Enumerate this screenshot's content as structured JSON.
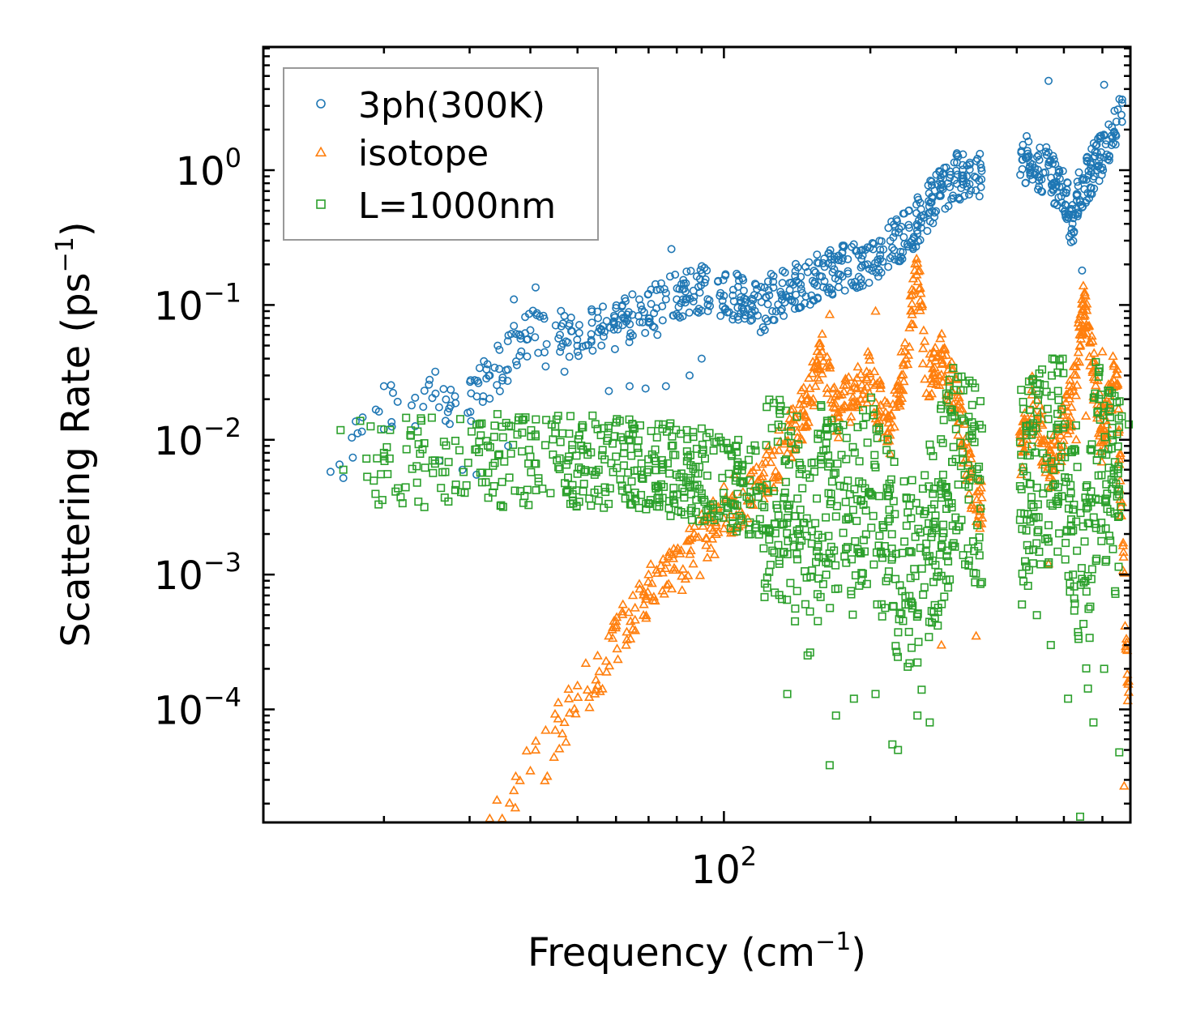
{
  "chart_data": {
    "type": "scatter",
    "title": "",
    "xlabel": "Frequency (cm",
    "xlabel_sup": "−1",
    "xlabel_end": ")",
    "ylabel": "Scattering Rate (ps",
    "ylabel_sup": "−1",
    "ylabel_end": ")",
    "xscale": "log",
    "yscale": "log",
    "xlim": [
      11.3,
      685
    ],
    "ylim": [
      1.45e-05,
      8.2
    ],
    "x_tick_labels": [
      {
        "value": 100,
        "base": "10",
        "exp": "2"
      }
    ],
    "y_tick_labels": [
      {
        "value": 1,
        "base": "10",
        "exp": "0"
      },
      {
        "value": 0.1,
        "base": "10",
        "exp": "−1"
      },
      {
        "value": 0.01,
        "base": "10",
        "exp": "−2"
      },
      {
        "value": 0.001,
        "base": "10",
        "exp": "−3"
      },
      {
        "value": 0.0001,
        "base": "10",
        "exp": "−4"
      }
    ],
    "legend_position": "top-left",
    "series": [
      {
        "name": "3ph(300K)",
        "marker": "circle",
        "color": "#1f77b4",
        "trend": [
          [
            15,
            0.006
          ],
          [
            20,
            0.018
          ],
          [
            30,
            0.02
          ],
          [
            40,
            0.06
          ],
          [
            50,
            0.06
          ],
          [
            60,
            0.07
          ],
          [
            70,
            0.09
          ],
          [
            80,
            0.12
          ],
          [
            90,
            0.13
          ],
          [
            100,
            0.12
          ],
          [
            110,
            0.11
          ],
          [
            120,
            0.09
          ],
          [
            130,
            0.12
          ],
          [
            140,
            0.14
          ],
          [
            150,
            0.15
          ],
          [
            170,
            0.18
          ],
          [
            190,
            0.2
          ],
          [
            210,
            0.25
          ],
          [
            240,
            0.35
          ],
          [
            260,
            0.5
          ],
          [
            280,
            0.7
          ],
          [
            300,
            0.9
          ],
          [
            330,
            0.9
          ],
          [
            420,
            1.2
          ],
          [
            460,
            1.0
          ],
          [
            500,
            0.7
          ],
          [
            520,
            0.4
          ],
          [
            540,
            0.7
          ],
          [
            580,
            1.1
          ],
          [
            620,
            1.6
          ],
          [
            660,
            2.5
          ]
        ],
        "points": [
          [
            16.5,
            0.0052
          ],
          [
            20,
            0.012
          ],
          [
            20,
            0.025
          ],
          [
            22.8,
            0.018
          ],
          [
            25.5,
            0.032
          ],
          [
            26,
            0.007
          ],
          [
            28,
            0.021
          ],
          [
            29,
            0.006
          ],
          [
            31,
            0.0055
          ],
          [
            32,
            0.021
          ],
          [
            33,
            0.03
          ],
          [
            36,
            0.009
          ],
          [
            37,
            0.07
          ],
          [
            37,
            0.11
          ],
          [
            38,
            0.042
          ],
          [
            40,
            0.065
          ],
          [
            41,
            0.135
          ],
          [
            43,
            0.035
          ],
          [
            46,
            0.06
          ],
          [
            47,
            0.032
          ],
          [
            48,
            0.07
          ],
          [
            50,
            0.045
          ],
          [
            52,
            0.05
          ],
          [
            56,
            0.05
          ],
          [
            58,
            0.023
          ],
          [
            60,
            0.095
          ],
          [
            64,
            0.025
          ],
          [
            67,
            0.11
          ],
          [
            69,
            0.024
          ],
          [
            73,
            0.06
          ],
          [
            76,
            0.025
          ],
          [
            78,
            0.26
          ],
          [
            80,
            0.11
          ],
          [
            85,
            0.03
          ],
          [
            90,
            0.04
          ],
          [
            125,
            0.17
          ],
          [
            330,
            0.88
          ],
          [
            465,
            4.6
          ],
          [
            545,
            0.18
          ],
          [
            605,
            4.3
          ]
        ]
      },
      {
        "name": "isotope",
        "marker": "triangle",
        "color": "#ff7f0e",
        "trend": [
          [
            33,
            1.5e-05
          ],
          [
            35,
            1.5e-05
          ],
          [
            38,
            2.8e-05
          ],
          [
            42,
            4e-05
          ],
          [
            46,
            7.5e-05
          ],
          [
            50,
            0.00012
          ],
          [
            55,
            0.0002
          ],
          [
            60,
            0.0003
          ],
          [
            65,
            0.0005
          ],
          [
            70,
            0.00075
          ],
          [
            80,
            0.0011
          ],
          [
            90,
            0.0016
          ],
          [
            100,
            0.0025
          ],
          [
            110,
            0.0035
          ],
          [
            120,
            0.005
          ],
          [
            140,
            0.012
          ],
          [
            150,
            0.02
          ],
          [
            160,
            0.05
          ],
          [
            170,
            0.015
          ],
          [
            180,
            0.02
          ],
          [
            200,
            0.03
          ],
          [
            220,
            0.01
          ],
          [
            240,
            0.06
          ],
          [
            250,
            0.2
          ],
          [
            260,
            0.03
          ],
          [
            280,
            0.04
          ],
          [
            300,
            0.02
          ],
          [
            330,
            0.003
          ],
          [
            400,
            0.006
          ],
          [
            430,
            0.02
          ],
          [
            470,
            0.006
          ],
          [
            520,
            0.02
          ],
          [
            550,
            0.1
          ],
          [
            600,
            0.01
          ],
          [
            640,
            0.04
          ],
          [
            680,
            0.0001
          ]
        ],
        "points": [
          [
            33,
            1.55e-05
          ],
          [
            35,
            1.55e-05
          ],
          [
            37,
            2.5e-05
          ],
          [
            40,
            3.5e-05
          ],
          [
            41,
            5e-05
          ],
          [
            43,
            7e-05
          ],
          [
            45,
            7e-05
          ],
          [
            47,
            8e-05
          ],
          [
            48,
            0.00012
          ],
          [
            50,
            0.00015
          ],
          [
            52,
            0.00022
          ],
          [
            55,
            0.00025
          ],
          [
            58,
            0.00035
          ],
          [
            60,
            0.00045
          ],
          [
            62,
            0.0006
          ],
          [
            65,
            0.0007
          ],
          [
            67,
            0.00085
          ],
          [
            70,
            0.001
          ],
          [
            75,
            0.0013
          ],
          [
            80,
            0.0015
          ],
          [
            85,
            0.0022
          ],
          [
            90,
            0.0028
          ],
          [
            95,
            0.0035
          ],
          [
            100,
            0.0045
          ],
          [
            105,
            0.0055
          ],
          [
            165,
            0.085
          ],
          [
            205,
            0.09
          ],
          [
            249,
            0.22
          ],
          [
            280,
            0.0003
          ],
          [
            330,
            0.00035
          ],
          [
            440,
            0.014
          ],
          [
            465,
            0.0012
          ],
          [
            480,
            0.006
          ],
          [
            530,
            0.01
          ],
          [
            545,
            0.11
          ],
          [
            555,
            0.015
          ],
          [
            600,
            0.045
          ],
          [
            640,
            0.025
          ],
          [
            665,
            2.7e-05
          ]
        ]
      },
      {
        "name": "L=1000nm",
        "marker": "square",
        "color": "#2ca02c",
        "trend": [
          [
            15,
            0.006
          ],
          [
            30,
            0.007
          ],
          [
            50,
            0.007
          ],
          [
            80,
            0.006
          ],
          [
            100,
            0.005
          ],
          [
            120,
            0.004
          ],
          [
            140,
            0.003
          ],
          [
            150,
            0.001
          ],
          [
            160,
            0.004
          ],
          [
            180,
            0.002
          ],
          [
            200,
            0.004
          ],
          [
            230,
            0.001
          ],
          [
            250,
            0.0008
          ],
          [
            280,
            0.003
          ],
          [
            300,
            0.008
          ],
          [
            330,
            0.005
          ],
          [
            410,
            0.004
          ],
          [
            450,
            0.006
          ],
          [
            500,
            0.008
          ],
          [
            540,
            0.0015
          ],
          [
            560,
            0.0008
          ],
          [
            580,
            0.007
          ],
          [
            620,
            0.005
          ],
          [
            660,
            0.003
          ]
        ],
        "points": [
          [
            16.5,
            0.006
          ],
          [
            20,
            0.008
          ],
          [
            24,
            0.0085
          ],
          [
            26,
            0.007
          ],
          [
            31,
            0.0085
          ],
          [
            31,
            0.013
          ],
          [
            35,
            0.0125
          ],
          [
            40,
            0.0075
          ],
          [
            45,
            0.0125
          ],
          [
            48,
            0.0075
          ],
          [
            55,
            0.012
          ],
          [
            60,
            0.0075
          ],
          [
            65,
            0.012
          ],
          [
            70,
            0.006
          ],
          [
            75,
            0.013
          ],
          [
            80,
            0.0055
          ],
          [
            85,
            0.0045
          ],
          [
            90,
            0.004
          ],
          [
            100,
            0.0035
          ],
          [
            120,
            0.0022
          ],
          [
            130,
            0.0012
          ],
          [
            135,
            0.00013
          ],
          [
            140,
            0.00045
          ],
          [
            148,
            0.00095
          ],
          [
            160,
            0.00085
          ],
          [
            165,
            3.85e-05
          ],
          [
            170,
            9e-05
          ],
          [
            185,
            0.00012
          ],
          [
            205,
            0.00013
          ],
          [
            222,
            5.5e-05
          ],
          [
            228,
            5e-05
          ],
          [
            250,
            9e-05
          ],
          [
            255,
            0.00014
          ],
          [
            265,
            8e-05
          ],
          [
            280,
            0.018
          ],
          [
            300,
            0.012
          ],
          [
            320,
            0.005
          ],
          [
            410,
            0.0006
          ],
          [
            440,
            0.0005
          ],
          [
            470,
            0.0003
          ],
          [
            510,
            0.00012
          ],
          [
            540,
            1.6e-05
          ],
          [
            575,
            8e-05
          ],
          [
            605,
            0.0002
          ],
          [
            650,
            4.8e-05
          ],
          [
            680,
            0.013
          ]
        ]
      }
    ]
  }
}
